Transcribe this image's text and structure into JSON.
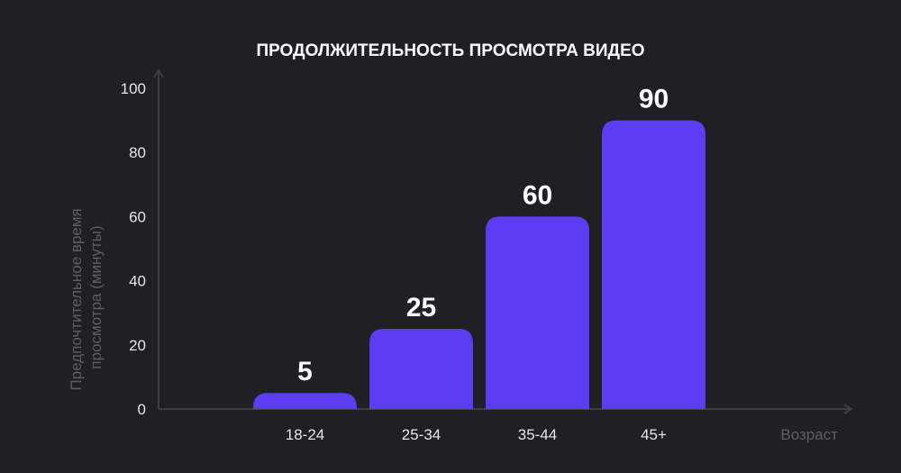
{
  "chart_data": {
    "type": "bar",
    "title": "ПРОДОЛЖИТЕЛЬНОСТЬ ПРОСМОТРА ВИДЕО",
    "xlabel": "Возраст",
    "ylabel": [
      "Предпочтительное время",
      "просмотра (минуты)"
    ],
    "categories": [
      "18-24",
      "25-34",
      "35-44",
      "45+"
    ],
    "values": [
      5,
      25,
      60,
      90
    ],
    "value_labels": [
      "5",
      "25",
      "60",
      "90"
    ],
    "ylim": [
      0,
      100
    ],
    "yticks": [
      0,
      20,
      40,
      60,
      80,
      100
    ],
    "ytick_labels": [
      "0",
      "20",
      "40",
      "60",
      "80",
      "100"
    ],
    "grid": false,
    "legend": "none",
    "colors": {
      "background": "#1f2026",
      "bar": "#5d3df2",
      "axis": "#3d3e45",
      "title": "#ffffff",
      "tick_text": "#e6e6ea",
      "axis_title_text": "#5d5e66",
      "value_text": "#ffffff"
    }
  }
}
